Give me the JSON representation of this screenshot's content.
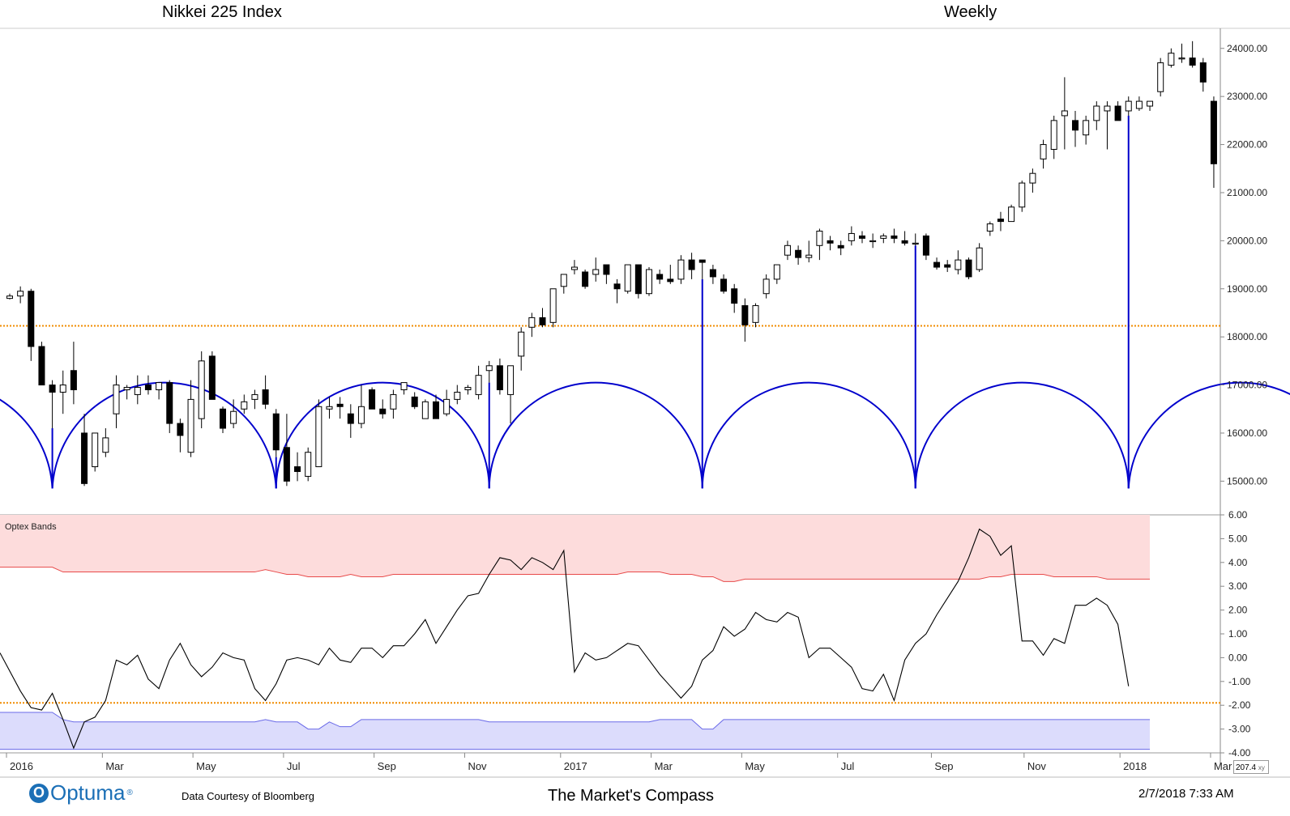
{
  "header": {
    "left_title": "Nikkei 225 Index",
    "right_title": "Weekly"
  },
  "footer": {
    "logo_text": "Optuma",
    "logo_mark": "O",
    "logo_reg": "®",
    "credit": "Data Courtesy of Bloomberg",
    "brand": "The Market's Compass",
    "timestamp": "2/7/2018 7:33 AM",
    "xy_readout": "207.4",
    "xy_icon": "xy"
  },
  "colors": {
    "candle_up": "#ffffff",
    "candle_down": "#000000",
    "cycle": "#0000cc",
    "orange_line": "#f08c00",
    "upper_band_fill": "#fddcdc",
    "upper_band_line": "#e84a4a",
    "lower_band_fill": "#dcdcfc",
    "lower_band_line": "#6a6ae8",
    "oscillator": "#000000"
  },
  "chart_data": [
    {
      "type": "candlestick",
      "title": "Nikkei 225 Index",
      "period": "Weekly",
      "ylim": [
        14400,
        24400
      ],
      "y_ticks": [
        "24000.00",
        "23000.00",
        "22000.00",
        "21000.00",
        "20000.00",
        "19000.00",
        "18000.00",
        "17000.00",
        "16000.00",
        "15000.00"
      ],
      "y_tick_values": [
        24000,
        23000,
        22000,
        21000,
        20000,
        19000,
        18000,
        17000,
        16000,
        15000
      ],
      "x_ticks": [
        "2016",
        "Mar",
        "May",
        "Jul",
        "Sep",
        "Nov",
        "2017",
        "Mar",
        "May",
        "Jul",
        "Sep",
        "Nov",
        "2018",
        "Mar"
      ],
      "horizontal_line": {
        "value": 18230,
        "style": "dotted",
        "color": "orange"
      },
      "cycle_lows_week_index": [
        4,
        25,
        45,
        65,
        85,
        105
      ],
      "cycle_bottom_value": 14850,
      "cycle_top_value": 17050,
      "candles": [
        [
          18800,
          18900,
          18780,
          18850
        ],
        [
          18850,
          19050,
          18700,
          18950
        ],
        [
          18950,
          19000,
          17500,
          17800
        ],
        [
          17800,
          17900,
          17000,
          17000
        ],
        [
          17000,
          17100,
          16100,
          16850
        ],
        [
          16850,
          17300,
          16400,
          17000
        ],
        [
          17300,
          17900,
          16600,
          16900
        ],
        [
          16000,
          16400,
          14900,
          14950
        ],
        [
          15300,
          16000,
          15200,
          16000
        ],
        [
          15600,
          16100,
          15500,
          15900
        ],
        [
          16400,
          17200,
          16100,
          17000
        ],
        [
          16900,
          17000,
          16700,
          16950
        ],
        [
          16800,
          17200,
          16600,
          16950
        ],
        [
          17000,
          17200,
          16800,
          16900
        ],
        [
          16900,
          17050,
          16700,
          17050
        ],
        [
          17050,
          17100,
          16000,
          16200
        ],
        [
          16200,
          16300,
          15600,
          15950
        ],
        [
          15600,
          17100,
          15500,
          16700
        ],
        [
          16300,
          17700,
          16100,
          17500
        ],
        [
          17600,
          17700,
          16700,
          16700
        ],
        [
          16500,
          16550,
          16000,
          16100
        ],
        [
          16200,
          16700,
          16100,
          16450
        ],
        [
          16500,
          16800,
          16400,
          16650
        ],
        [
          16700,
          16900,
          16500,
          16800
        ],
        [
          16900,
          17200,
          16500,
          16600
        ],
        [
          16400,
          16500,
          15500,
          15650
        ],
        [
          15700,
          16400,
          14900,
          15000
        ],
        [
          15300,
          15600,
          15000,
          15200
        ],
        [
          15100,
          15700,
          15000,
          15600
        ],
        [
          15300,
          16700,
          15300,
          16550
        ],
        [
          16500,
          16750,
          16300,
          16550
        ],
        [
          16600,
          16750,
          16300,
          16550
        ],
        [
          16400,
          16600,
          15900,
          16200
        ],
        [
          16200,
          17000,
          16100,
          16550
        ],
        [
          16900,
          16950,
          16500,
          16500
        ],
        [
          16500,
          16700,
          16300,
          16400
        ],
        [
          16500,
          16900,
          16300,
          16800
        ],
        [
          16900,
          17050,
          16800,
          17050
        ],
        [
          16750,
          16850,
          16500,
          16550
        ],
        [
          16300,
          16700,
          16300,
          16650
        ],
        [
          16650,
          16800,
          16300,
          16300
        ],
        [
          16400,
          16900,
          16350,
          16700
        ],
        [
          16700,
          17000,
          16600,
          16850
        ],
        [
          16900,
          17000,
          16800,
          16950
        ],
        [
          16800,
          17400,
          16700,
          17200
        ],
        [
          17300,
          17500,
          17050,
          17400
        ],
        [
          17400,
          17550,
          16800,
          16900
        ],
        [
          16800,
          17400,
          16200,
          17400
        ],
        [
          17600,
          18200,
          17300,
          18100
        ],
        [
          18200,
          18500,
          18000,
          18400
        ],
        [
          18400,
          18600,
          18200,
          18250
        ],
        [
          18300,
          19000,
          18200,
          19000
        ],
        [
          19050,
          19300,
          18900,
          19300
        ],
        [
          19400,
          19600,
          19300,
          19450
        ],
        [
          19350,
          19400,
          19000,
          19050
        ],
        [
          19300,
          19650,
          19150,
          19400
        ],
        [
          19500,
          19500,
          19100,
          19300
        ],
        [
          19100,
          19200,
          18700,
          19000
        ],
        [
          18950,
          19500,
          18900,
          19500
        ],
        [
          19500,
          19500,
          18800,
          18900
        ],
        [
          18900,
          19450,
          18850,
          19400
        ],
        [
          19300,
          19400,
          19100,
          19200
        ],
        [
          19200,
          19500,
          19100,
          19150
        ],
        [
          19200,
          19700,
          19100,
          19600
        ],
        [
          19600,
          19750,
          19200,
          19400
        ],
        [
          19600,
          19600,
          19200,
          19550
        ],
        [
          19400,
          19500,
          19100,
          19250
        ],
        [
          19200,
          19300,
          18900,
          18950
        ],
        [
          19000,
          19100,
          18500,
          18700
        ],
        [
          18650,
          18800,
          17900,
          18250
        ],
        [
          18300,
          18700,
          18200,
          18650
        ],
        [
          18900,
          19300,
          18800,
          19200
        ],
        [
          19200,
          19500,
          19100,
          19500
        ],
        [
          19700,
          20000,
          19600,
          19900
        ],
        [
          19800,
          19900,
          19500,
          19650
        ],
        [
          19650,
          20000,
          19550,
          19700
        ],
        [
          19900,
          20250,
          19600,
          20200
        ],
        [
          20000,
          20100,
          19800,
          19950
        ],
        [
          19900,
          20000,
          19700,
          19850
        ],
        [
          20000,
          20300,
          19900,
          20150
        ],
        [
          20100,
          20200,
          19950,
          20050
        ],
        [
          20000,
          20150,
          19850,
          20000
        ],
        [
          20050,
          20150,
          19950,
          20100
        ],
        [
          20100,
          20250,
          19950,
          20050
        ],
        [
          20000,
          20200,
          19900,
          19950
        ],
        [
          19950,
          20150,
          19900,
          19950
        ],
        [
          20100,
          20150,
          19600,
          19700
        ],
        [
          19550,
          19650,
          19400,
          19450
        ],
        [
          19500,
          19600,
          19350,
          19450
        ],
        [
          19400,
          19800,
          19300,
          19600
        ],
        [
          19600,
          19650,
          19200,
          19250
        ],
        [
          19400,
          19950,
          19350,
          19850
        ],
        [
          20200,
          20400,
          20100,
          20350
        ],
        [
          20450,
          20600,
          20200,
          20400
        ],
        [
          20400,
          20750,
          20400,
          20700
        ],
        [
          20700,
          21250,
          20600,
          21200
        ],
        [
          21200,
          21500,
          21000,
          21400
        ],
        [
          21700,
          22100,
          21500,
          22000
        ],
        [
          21900,
          22600,
          21700,
          22500
        ],
        [
          22600,
          23400,
          21900,
          22700
        ],
        [
          22500,
          22700,
          21950,
          22300
        ],
        [
          22200,
          22600,
          22000,
          22500
        ],
        [
          22500,
          22900,
          22300,
          22800
        ],
        [
          22700,
          22900,
          21900,
          22800
        ],
        [
          22800,
          22900,
          22500,
          22500
        ],
        [
          22700,
          23000,
          22600,
          22900
        ],
        [
          22750,
          23000,
          22700,
          22900
        ],
        [
          22800,
          22900,
          22700,
          22900
        ],
        [
          23100,
          23800,
          23000,
          23700
        ],
        [
          23650,
          24000,
          23600,
          23900
        ],
        [
          23800,
          24100,
          23700,
          23800
        ],
        [
          23800,
          24150,
          23600,
          23650
        ],
        [
          23700,
          23800,
          23100,
          23300
        ],
        [
          22900,
          23000,
          21100,
          21600
        ]
      ]
    },
    {
      "type": "line",
      "title": "Optex Bands",
      "ylim": [
        -4.0,
        6.0
      ],
      "y_ticks": [
        "6.00",
        "5.00",
        "4.00",
        "3.00",
        "2.00",
        "1.00",
        "0.00",
        "-1.00",
        "-2.00",
        "-3.00",
        "-4.00"
      ],
      "y_tick_values": [
        6,
        5,
        4,
        3,
        2,
        1,
        0,
        -1,
        -2,
        -3,
        -4
      ],
      "horizontal_line": {
        "value": -1.9,
        "style": "dotted",
        "color": "orange"
      },
      "upper_band_top": 6.0,
      "lower_band_bottom": -3.85,
      "upper_band": [
        3.8,
        3.8,
        3.8,
        3.8,
        3.8,
        3.6,
        3.6,
        3.6,
        3.6,
        3.6,
        3.6,
        3.6,
        3.6,
        3.6,
        3.6,
        3.6,
        3.6,
        3.6,
        3.6,
        3.6,
        3.6,
        3.6,
        3.6,
        3.6,
        3.7,
        3.6,
        3.5,
        3.5,
        3.4,
        3.4,
        3.4,
        3.4,
        3.5,
        3.4,
        3.4,
        3.4,
        3.5,
        3.5,
        3.5,
        3.5,
        3.5,
        3.5,
        3.5,
        3.5,
        3.5,
        3.5,
        3.5,
        3.5,
        3.5,
        3.5,
        3.5,
        3.5,
        3.5,
        3.5,
        3.5,
        3.5,
        3.5,
        3.5,
        3.6,
        3.6,
        3.6,
        3.6,
        3.5,
        3.5,
        3.5,
        3.4,
        3.4,
        3.2,
        3.2,
        3.3,
        3.3,
        3.3,
        3.3,
        3.3,
        3.3,
        3.3,
        3.3,
        3.3,
        3.3,
        3.3,
        3.3,
        3.3,
        3.3,
        3.3,
        3.3,
        3.3,
        3.3,
        3.3,
        3.3,
        3.3,
        3.3,
        3.3,
        3.4,
        3.4,
        3.5,
        3.5,
        3.5,
        3.5,
        3.4,
        3.4,
        3.4,
        3.4,
        3.4,
        3.3,
        3.3,
        3.3,
        3.3,
        3.3
      ],
      "lower_band": [
        -2.3,
        -2.3,
        -2.3,
        -2.3,
        -2.3,
        -2.6,
        -2.7,
        -2.7,
        -2.7,
        -2.7,
        -2.7,
        -2.7,
        -2.7,
        -2.7,
        -2.7,
        -2.7,
        -2.7,
        -2.7,
        -2.7,
        -2.7,
        -2.7,
        -2.7,
        -2.7,
        -2.7,
        -2.6,
        -2.7,
        -2.7,
        -2.7,
        -3.0,
        -3.0,
        -2.7,
        -2.9,
        -2.9,
        -2.6,
        -2.6,
        -2.6,
        -2.6,
        -2.6,
        -2.6,
        -2.6,
        -2.6,
        -2.6,
        -2.6,
        -2.6,
        -2.6,
        -2.7,
        -2.7,
        -2.7,
        -2.7,
        -2.7,
        -2.7,
        -2.7,
        -2.7,
        -2.7,
        -2.7,
        -2.7,
        -2.7,
        -2.7,
        -2.7,
        -2.7,
        -2.7,
        -2.6,
        -2.6,
        -2.6,
        -2.6,
        -3.0,
        -3.0,
        -2.6,
        -2.6,
        -2.6,
        -2.6,
        -2.6,
        -2.6,
        -2.6,
        -2.6,
        -2.6,
        -2.6,
        -2.6,
        -2.6,
        -2.6,
        -2.6,
        -2.6,
        -2.6,
        -2.6,
        -2.6,
        -2.6,
        -2.6,
        -2.6,
        -2.6,
        -2.6,
        -2.6,
        -2.6,
        -2.6,
        -2.6,
        -2.6,
        -2.6,
        -2.6,
        -2.6,
        -2.6,
        -2.6,
        -2.6,
        -2.6,
        -2.6,
        -2.6,
        -2.6,
        -2.6,
        -2.6,
        -2.6
      ],
      "oscillator": [
        0.2,
        -1.4,
        -2.1,
        -2.2,
        -1.5,
        -2.6,
        -3.8,
        -2.7,
        -2.5,
        -1.8,
        -0.1,
        -0.3,
        0.1,
        -0.9,
        -1.3,
        -0.1,
        0.6,
        -0.3,
        -0.8,
        -0.4,
        0.2,
        0.0,
        -0.1,
        -1.3,
        -1.8,
        -1.1,
        -0.1,
        0.0,
        -0.1,
        -0.3,
        0.4,
        -0.1,
        -0.2,
        0.4,
        0.4,
        0.0,
        0.5,
        0.5,
        1.0,
        1.6,
        0.6,
        1.3,
        2.0,
        2.6,
        2.7,
        3.5,
        4.2,
        4.1,
        3.7,
        4.2,
        4.0,
        3.7,
        4.5,
        -0.6,
        0.2,
        -0.1,
        0.0,
        0.3,
        0.6,
        0.5,
        -0.1,
        -0.7,
        -1.2,
        -1.7,
        -1.2,
        -0.1,
        0.3,
        1.3,
        0.9,
        1.2,
        1.9,
        1.6,
        1.5,
        1.9,
        1.7,
        0.0,
        0.4,
        0.4,
        0.0,
        -0.4,
        -1.3,
        -1.4,
        -0.7,
        -1.8,
        -0.1,
        0.6,
        1.0,
        1.8,
        2.5,
        3.2,
        4.2,
        5.4,
        5.1,
        4.3,
        4.7,
        0.7,
        0.7,
        0.1,
        0.8,
        0.6,
        2.2,
        2.2,
        2.5,
        2.2,
        1.4,
        -1.2
      ]
    }
  ]
}
